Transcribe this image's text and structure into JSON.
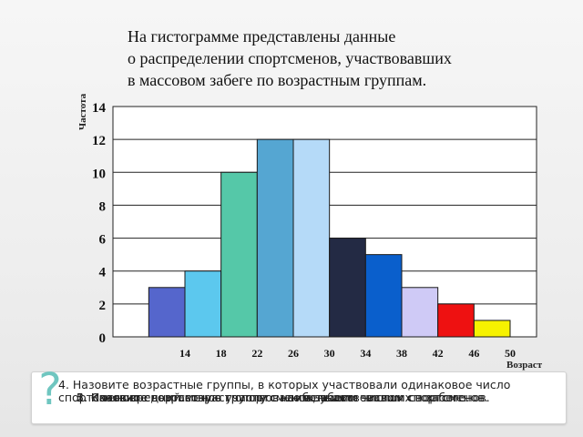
{
  "slide": {
    "title_lines": [
      "На гистограмме представлены данные",
      "о распределении спортсменов, участвовавших",
      "в массовом забеге по возрастным группам."
    ]
  },
  "questions": {
    "mark": "?",
    "items": [
      "1. Сколько спортсменов участвовало в забеге.",
      "2. Назовите возрастную группу с наибольшим числом спортсменов.",
      "3. Назовите возрастную группу с наименьшим числом спортсменов.",
      "4. Назовите возрастные группы, в которых участвовали одинаковое число спортсменов",
      "5. Каков средний возраст спортсменов, участвовавших в забеге."
    ]
  },
  "chart_data": {
    "type": "bar",
    "title": "",
    "ylabel": "Частота",
    "xlabel": "Возраст",
    "ylim": [
      0,
      14
    ],
    "y_ticks": [
      0,
      2,
      4,
      6,
      8,
      10,
      12,
      14
    ],
    "x_ticks": [
      14,
      18,
      22,
      26,
      30,
      34,
      38,
      42,
      46,
      50
    ],
    "grid": true,
    "bins": [
      {
        "from": 10,
        "to": 14,
        "value": 3,
        "color": "#5566cc"
      },
      {
        "from": 14,
        "to": 18,
        "value": 4,
        "color": "#5cc8ee"
      },
      {
        "from": 18,
        "to": 22,
        "value": 10,
        "color": "#55c8a8"
      },
      {
        "from": 22,
        "to": 26,
        "value": 12,
        "color": "#55a6d2"
      },
      {
        "from": 26,
        "to": 30,
        "value": 12,
        "color": "#b5daf8"
      },
      {
        "from": 30,
        "to": 34,
        "value": 6,
        "color": "#232a44"
      },
      {
        "from": 34,
        "to": 38,
        "value": 5,
        "color": "#0a5fcc"
      },
      {
        "from": 38,
        "to": 42,
        "value": 3,
        "color": "#cfcaf6"
      },
      {
        "from": 42,
        "to": 46,
        "value": 2,
        "color": "#ee1111"
      },
      {
        "from": 46,
        "to": 50,
        "value": 1,
        "color": "#f6f200"
      }
    ]
  }
}
